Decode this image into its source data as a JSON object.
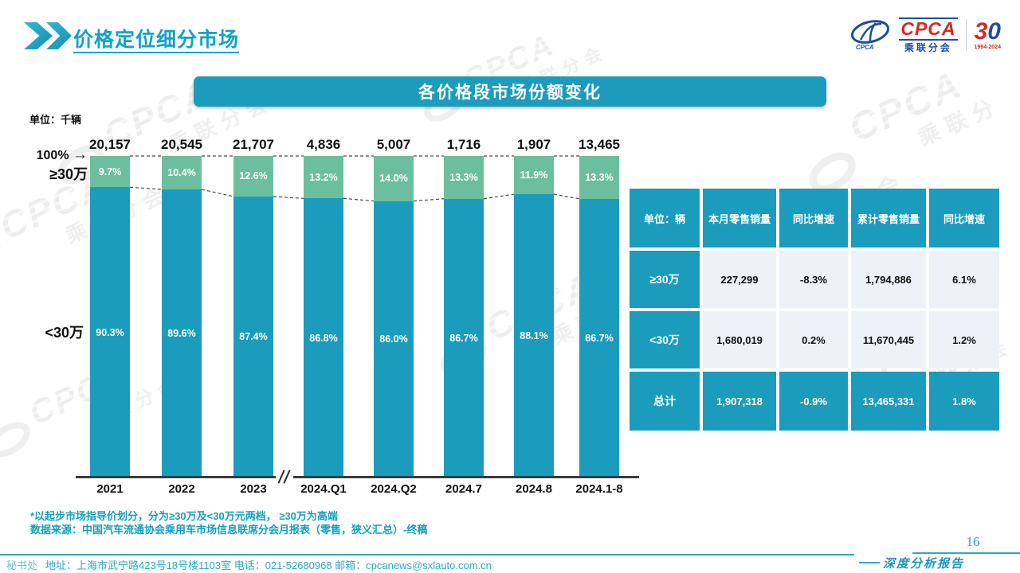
{
  "page": {
    "title": "价格定位细分市场",
    "page_number": "16",
    "report_type": "深度分析报告",
    "footer": {
      "secretariat": "秘书处",
      "contact": "地址：上海市武宁路423号18号楼1103室 电话：021-52680968  邮箱：cpcanews@sxlauto.com.cn"
    },
    "logo": {
      "cpca": "CPCA",
      "cpca_sub": "乘联分会",
      "anniv_3": "3",
      "anniv_0": "0",
      "anniv_years": "1994-2024"
    }
  },
  "banner": {
    "title": "各价格段市场份额变化"
  },
  "notes": {
    "unit": "单位：千辆",
    "axis_top": "100%",
    "left_upper": "≥30万",
    "left_lower": "<30万",
    "footnote1": "*以起步市场指导价划分，分为≥30万及<30万元两档， ≥30万为高端",
    "footnote2": "数据来源：中国汽车流通协会乘用车市场信息联席分会月报表（零售，狭义汇总）-终稿"
  },
  "chart_data": {
    "type": "bar",
    "stacked": true,
    "title": "各价格段市场份额变化",
    "unit_label": "单位：千辆",
    "categories": [
      "2021",
      "2022",
      "2023",
      "2024.Q1",
      "2024.Q2",
      "2024.7",
      "2024.8",
      "2024.1-8"
    ],
    "totals": [
      "20,157",
      "20,545",
      "21,707",
      "4,836",
      "5,007",
      "1,716",
      "1,907",
      "13,465"
    ],
    "series": [
      {
        "name": "≥30万",
        "color": "#6cbf9e",
        "values": [
          9.7,
          10.4,
          12.6,
          13.2,
          14.0,
          13.3,
          11.9,
          13.3
        ]
      },
      {
        "name": "<30万",
        "color": "#1b9cbc",
        "values": [
          90.3,
          89.6,
          87.4,
          86.8,
          86.0,
          86.7,
          88.1,
          86.7
        ]
      }
    ],
    "ylim": [
      0,
      100
    ],
    "axis_break_after": "2023",
    "legend_position": "left-axis-labels",
    "grid": false
  },
  "table": {
    "columns": [
      "单位：辆",
      "本月零售销量",
      "同比增速",
      "累计零售销量",
      "同比增速"
    ],
    "rows": [
      {
        "label": "≥30万",
        "cells": [
          "227,299",
          "-8.3%",
          "1,794,886",
          "6.1%"
        ],
        "highlight": false
      },
      {
        "label": "<30万",
        "cells": [
          "1,680,019",
          "0.2%",
          "11,670,445",
          "1.2%"
        ],
        "highlight": false
      },
      {
        "label": "总计",
        "cells": [
          "1,907,318",
          "-0.9%",
          "13,465,331",
          "1.8%"
        ],
        "highlight": true
      }
    ]
  },
  "watermark": {
    "main": "CPCA",
    "sub": "乘联分会"
  },
  "colors": {
    "teal": "#1b9cbc",
    "green": "#6cbf9e",
    "title_teal": "#0fa3c8",
    "footnote_teal": "#12a0c0",
    "footer_teal": "#2ba9c8",
    "cell_bg": "#edf2f9",
    "logo_red": "#d42a26",
    "logo_blue": "#1d4f9e"
  }
}
